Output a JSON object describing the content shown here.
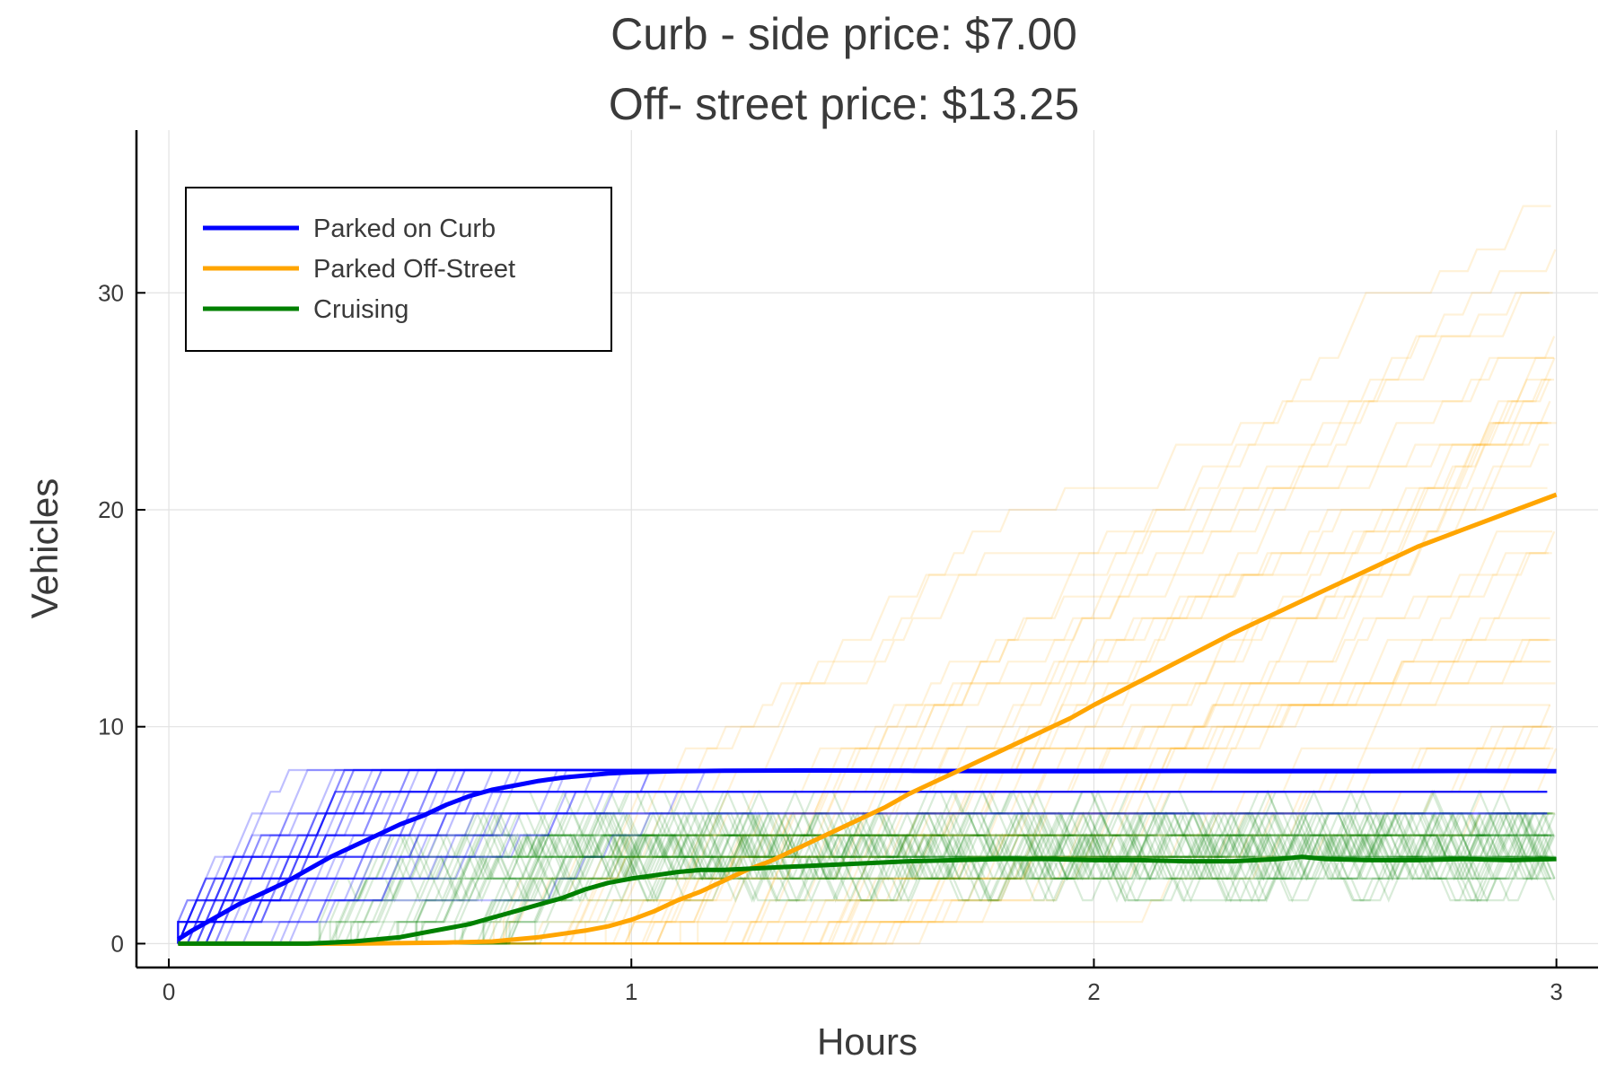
{
  "chart_data": {
    "type": "line",
    "title_line1": "Curb - side price: $7.00",
    "title_line2": "Off- street price: $13.25",
    "xlabel": "Hours",
    "ylabel": "Vehicles",
    "xlim": [
      -0.07,
      3.09
    ],
    "ylim": [
      -1.1,
      37.5
    ],
    "x_ticks": [
      0,
      1,
      2,
      3
    ],
    "y_ticks": [
      0,
      10,
      20,
      30
    ],
    "grid": true,
    "legend_position": "top-left",
    "series": [
      {
        "name": "Parked on Curb",
        "color": "#0000ff",
        "points": [
          [
            0.02,
            0.2
          ],
          [
            0.05,
            0.6
          ],
          [
            0.1,
            1.2
          ],
          [
            0.15,
            1.8
          ],
          [
            0.2,
            2.3
          ],
          [
            0.25,
            2.8
          ],
          [
            0.3,
            3.4
          ],
          [
            0.35,
            4.0
          ],
          [
            0.4,
            4.5
          ],
          [
            0.45,
            5.0
          ],
          [
            0.5,
            5.5
          ],
          [
            0.55,
            5.9
          ],
          [
            0.6,
            6.4
          ],
          [
            0.65,
            6.8
          ],
          [
            0.7,
            7.1
          ],
          [
            0.75,
            7.3
          ],
          [
            0.8,
            7.5
          ],
          [
            0.85,
            7.65
          ],
          [
            0.9,
            7.75
          ],
          [
            0.95,
            7.85
          ],
          [
            1.0,
            7.9
          ],
          [
            1.1,
            7.95
          ],
          [
            1.2,
            7.97
          ],
          [
            1.4,
            7.98
          ],
          [
            1.6,
            7.97
          ],
          [
            1.8,
            7.95
          ],
          [
            2.0,
            7.95
          ],
          [
            2.2,
            7.96
          ],
          [
            2.4,
            7.95
          ],
          [
            2.6,
            7.95
          ],
          [
            2.8,
            7.96
          ],
          [
            3.0,
            7.95
          ]
        ]
      },
      {
        "name": "Parked Off-Street",
        "color": "#ffa500",
        "points": [
          [
            0.02,
            0
          ],
          [
            0.4,
            0
          ],
          [
            0.6,
            0.05
          ],
          [
            0.7,
            0.1
          ],
          [
            0.8,
            0.3
          ],
          [
            0.9,
            0.6
          ],
          [
            0.95,
            0.8
          ],
          [
            1.0,
            1.1
          ],
          [
            1.05,
            1.5
          ],
          [
            1.1,
            2.0
          ],
          [
            1.15,
            2.4
          ],
          [
            1.2,
            2.9
          ],
          [
            1.25,
            3.4
          ],
          [
            1.3,
            3.8
          ],
          [
            1.35,
            4.3
          ],
          [
            1.4,
            4.8
          ],
          [
            1.45,
            5.3
          ],
          [
            1.5,
            5.8
          ],
          [
            1.55,
            6.3
          ],
          [
            1.6,
            6.9
          ],
          [
            1.65,
            7.4
          ],
          [
            1.7,
            7.9
          ],
          [
            1.75,
            8.4
          ],
          [
            1.8,
            8.9
          ],
          [
            1.85,
            9.4
          ],
          [
            1.9,
            9.9
          ],
          [
            1.95,
            10.4
          ],
          [
            2.0,
            11.0
          ],
          [
            2.1,
            12.1
          ],
          [
            2.2,
            13.2
          ],
          [
            2.3,
            14.3
          ],
          [
            2.4,
            15.3
          ],
          [
            2.5,
            16.3
          ],
          [
            2.6,
            17.3
          ],
          [
            2.7,
            18.3
          ],
          [
            2.8,
            19.1
          ],
          [
            2.9,
            19.9
          ],
          [
            3.0,
            20.7
          ]
        ]
      },
      {
        "name": "Cruising",
        "color": "#008000",
        "points": [
          [
            0.02,
            0
          ],
          [
            0.3,
            0
          ],
          [
            0.35,
            0.05
          ],
          [
            0.4,
            0.1
          ],
          [
            0.45,
            0.2
          ],
          [
            0.5,
            0.3
          ],
          [
            0.55,
            0.5
          ],
          [
            0.6,
            0.7
          ],
          [
            0.65,
            0.9
          ],
          [
            0.7,
            1.2
          ],
          [
            0.75,
            1.5
          ],
          [
            0.8,
            1.8
          ],
          [
            0.85,
            2.1
          ],
          [
            0.9,
            2.5
          ],
          [
            0.95,
            2.8
          ],
          [
            1.0,
            3.0
          ],
          [
            1.05,
            3.15
          ],
          [
            1.1,
            3.3
          ],
          [
            1.15,
            3.4
          ],
          [
            1.2,
            3.4
          ],
          [
            1.3,
            3.5
          ],
          [
            1.4,
            3.6
          ],
          [
            1.5,
            3.7
          ],
          [
            1.6,
            3.8
          ],
          [
            1.7,
            3.85
          ],
          [
            1.8,
            3.9
          ],
          [
            1.9,
            3.9
          ],
          [
            2.0,
            3.85
          ],
          [
            2.1,
            3.85
          ],
          [
            2.2,
            3.8
          ],
          [
            2.3,
            3.8
          ],
          [
            2.4,
            3.9
          ],
          [
            2.45,
            4.0
          ],
          [
            2.5,
            3.9
          ],
          [
            2.6,
            3.85
          ],
          [
            2.7,
            3.85
          ],
          [
            2.8,
            3.9
          ],
          [
            2.9,
            3.85
          ],
          [
            3.0,
            3.9
          ]
        ]
      }
    ],
    "simulation_traces": {
      "note_count": 0,
      "curb": {
        "color": "#0000ff",
        "opacity": 0.25,
        "count": 40,
        "cap": 8
      },
      "offstreet": {
        "color": "#ffa500",
        "opacity": 0.15,
        "count": 40
      },
      "cruising": {
        "color": "#008000",
        "opacity": 0.15,
        "count": 40
      }
    }
  }
}
